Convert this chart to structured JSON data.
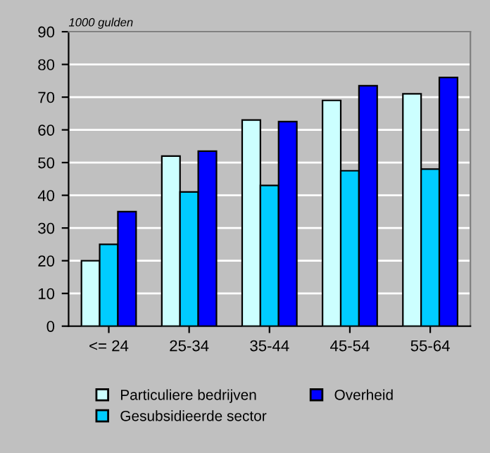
{
  "chart_data": {
    "type": "bar",
    "ylabel": "1000 gulden",
    "categories": [
      "<= 24",
      "25-34",
      "35-44",
      "45-54",
      "55-64"
    ],
    "series": [
      {
        "name": "Particuliere bedrijven",
        "color": "#ccffff",
        "values": [
          20,
          52,
          63,
          69,
          71
        ]
      },
      {
        "name": "Gesubsidieerde sector",
        "color": "#00ccff",
        "values": [
          25,
          41,
          43,
          47.5,
          48
        ]
      },
      {
        "name": "Overheid",
        "color": "#0000ff",
        "values": [
          35,
          53.5,
          62.5,
          73.5,
          76
        ]
      }
    ],
    "ylim": [
      0,
      90
    ],
    "yticks": [
      0,
      10,
      20,
      30,
      40,
      50,
      60,
      70,
      80,
      90
    ],
    "grid": "y",
    "legend": "bottom"
  }
}
